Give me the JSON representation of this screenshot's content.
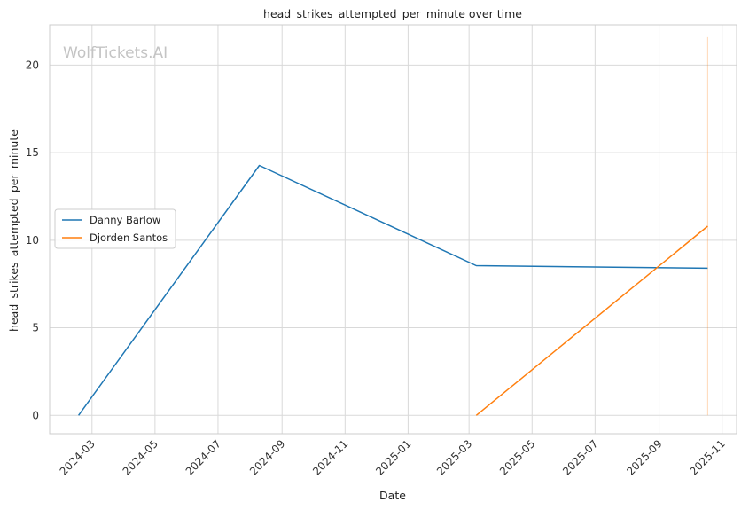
{
  "chart_data": {
    "type": "line",
    "title": "head_strikes_attempted_per_minute over time",
    "xlabel": "Date",
    "ylabel": "head_strikes_attempted_per_minute",
    "watermark": "WolfTickets.AI",
    "x_ticks": [
      "2024-03",
      "2024-05",
      "2024-07",
      "2024-09",
      "2024-11",
      "2025-01",
      "2025-03",
      "2025-05",
      "2025-07",
      "2025-09",
      "2025-11"
    ],
    "y_ticks": [
      "0",
      "5",
      "10",
      "15",
      "20"
    ],
    "xlim": [
      "2024-01-20",
      "2025-11-15"
    ],
    "ylim": [
      -1.05,
      22.3
    ],
    "grid": true,
    "legend_position": "center-left",
    "series": [
      {
        "name": "Danny Barlow",
        "color": "#1f77b4",
        "points": [
          {
            "x": "2024-02-17",
            "y": 0.0
          },
          {
            "x": "2024-08-10",
            "y": 14.27
          },
          {
            "x": "2025-03-08",
            "y": 8.55
          },
          {
            "x": "2025-10-18",
            "y": 8.4
          }
        ]
      },
      {
        "name": "Djorden Santos",
        "color": "#ff7f0e",
        "points": [
          {
            "x": "2025-03-08",
            "y": 0.0
          },
          {
            "x": "2025-10-18",
            "y": 10.8
          }
        ]
      }
    ],
    "annotations": [
      {
        "type": "vertical-line",
        "x": "2025-10-18",
        "y_from": 0.0,
        "y_to": 21.6,
        "color": "#ff7f0e"
      }
    ]
  }
}
